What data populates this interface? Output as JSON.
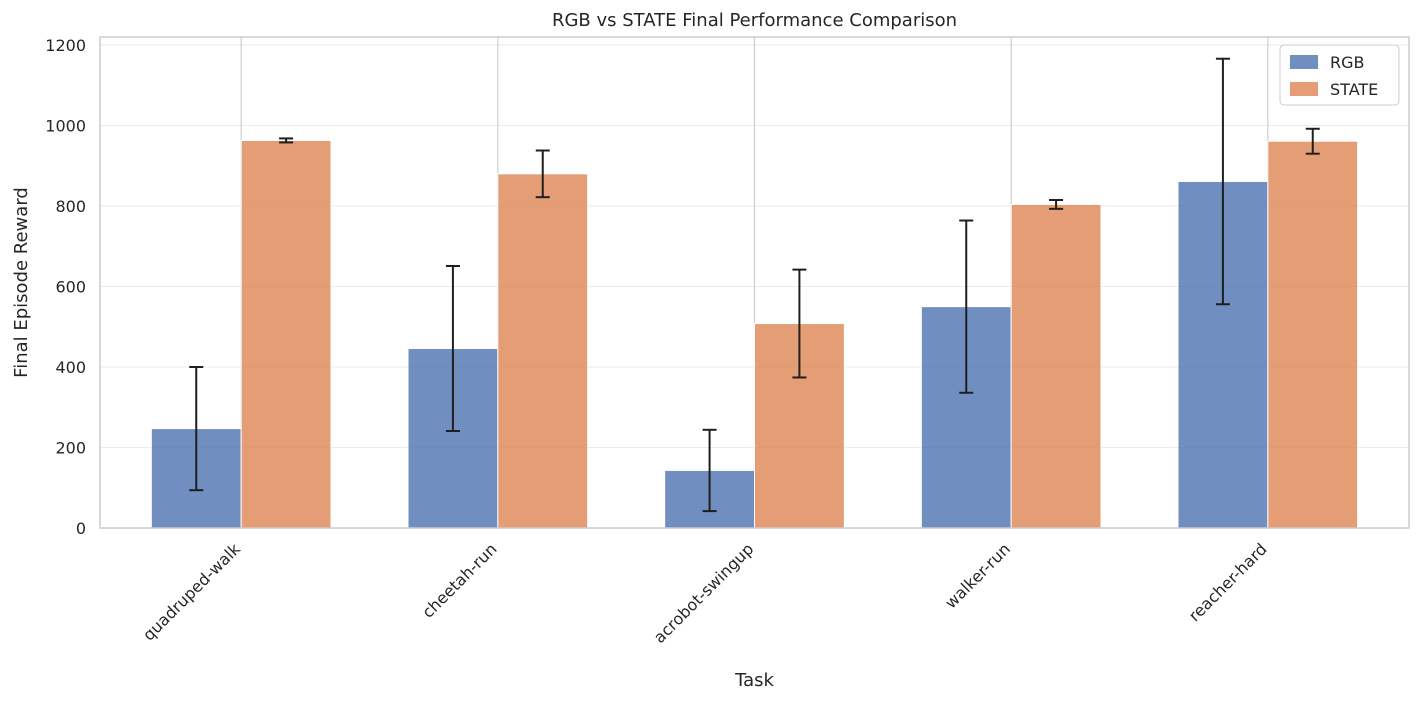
{
  "chart_data": {
    "type": "bar",
    "title": "RGB vs STATE Final Performance Comparison",
    "xlabel": "Task",
    "ylabel": "Final Episode Reward",
    "categories": [
      "quadruped-walk",
      "cheetah-run",
      "acrobot-swingup",
      "walker-run",
      "reacher-hard"
    ],
    "series": [
      {
        "name": "RGB",
        "color": "#4c72b0",
        "values": [
          247,
          446,
          143,
          550,
          861
        ],
        "errors": [
          153,
          205,
          101,
          214,
          305
        ]
      },
      {
        "name": "STATE",
        "color": "#dd8452",
        "values": [
          963,
          880,
          508,
          804,
          961
        ],
        "errors": [
          5,
          58,
          134,
          11,
          31
        ]
      }
    ],
    "ylim": [
      0,
      1220
    ],
    "yticks": [
      0,
      200,
      400,
      600,
      800,
      1000,
      1200
    ],
    "grid": true,
    "legend_position": "top-right"
  }
}
